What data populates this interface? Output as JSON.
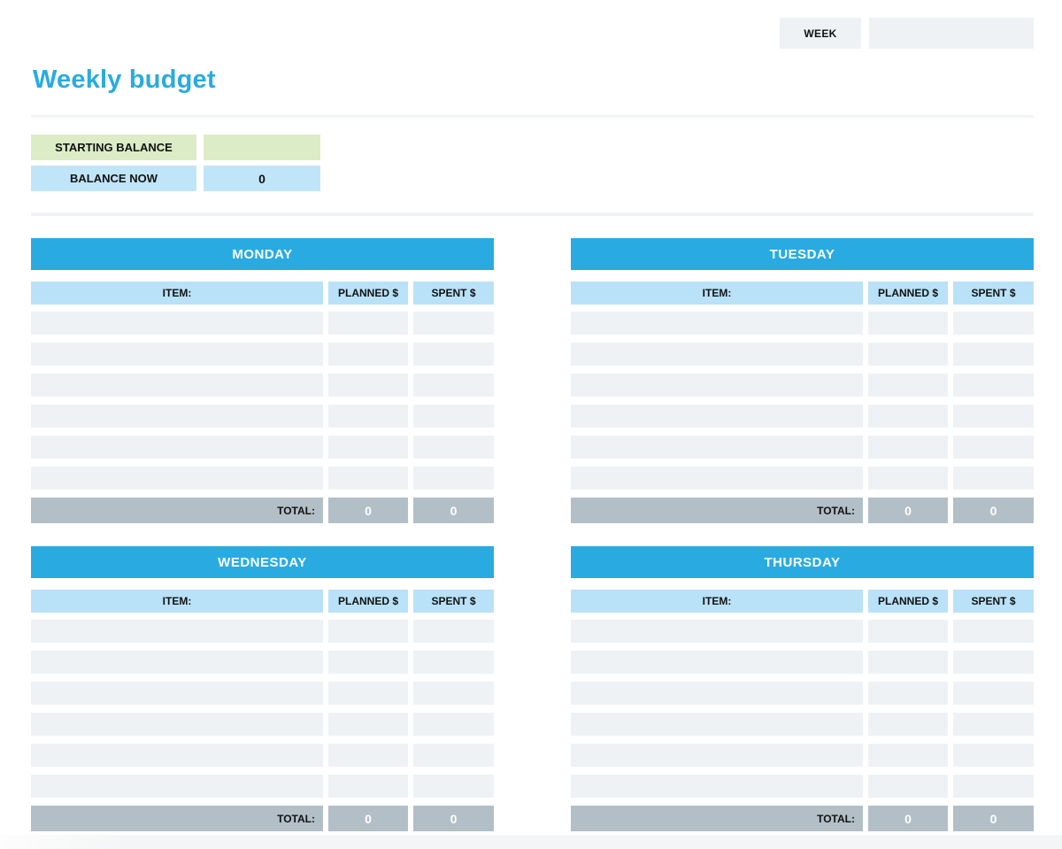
{
  "page": {
    "title": "Weekly budget",
    "week_label": "WEEK",
    "week_value": ""
  },
  "balance": {
    "starting_label": "STARTING BALANCE",
    "starting_value": "",
    "now_label": "BALANCE NOW",
    "now_value": "0"
  },
  "table_headers": {
    "item": "ITEM:",
    "planned": "PLANNED $",
    "spent": "SPENT $",
    "total": "TOTAL:"
  },
  "days": [
    {
      "name": "MONDAY",
      "empty_rows": 6,
      "total_planned": "0",
      "total_spent": "0"
    },
    {
      "name": "TUESDAY",
      "empty_rows": 6,
      "total_planned": "0",
      "total_spent": "0"
    },
    {
      "name": "WEDNESDAY",
      "empty_rows": 6,
      "total_planned": "0",
      "total_spent": "0"
    },
    {
      "name": "THURSDAY",
      "empty_rows": 6,
      "total_planned": "0",
      "total_spent": "0"
    }
  ],
  "colors": {
    "accent_blue": "#29abe2",
    "column_header_blue": "#b9e2f8",
    "balance_now_blue": "#c0e5f9",
    "starting_balance_green": "#dcecc6",
    "row_fill": "#eef2f5",
    "total_gray": "#b2bfc7",
    "box_gray": "#eef2f5",
    "divider_gray": "#f1f4f5"
  }
}
